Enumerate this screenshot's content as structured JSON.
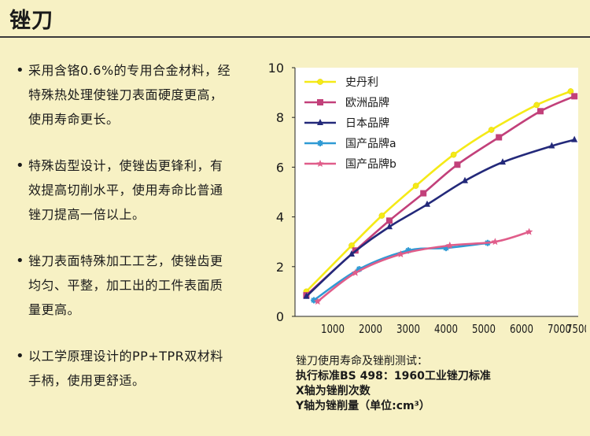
{
  "header": {
    "title": "锉刀"
  },
  "bullets": [
    "采用含铬0.6%的专用合金材料，经特殊热处理使锉刀表面硬度更高，使用寿命更长。",
    "特殊齿型设计，使锉齿更锋利，有效提高切削水平，使用寿命比普通锉刀提高一倍以上。",
    "锉刀表面特殊加工工艺，使锉齿更均匀、平整，加工出的工件表面质量更高。",
    "以工学原理设计的PP+TPR双材料手柄，使用更舒适。"
  ],
  "chart_data": {
    "type": "line",
    "title": "",
    "xlabel": "",
    "ylabel": "",
    "xlim": [
      0,
      7500
    ],
    "ylim": [
      0,
      10
    ],
    "x_ticks": [
      1000,
      2000,
      3000,
      4000,
      5000,
      6000,
      7000,
      7500
    ],
    "x_tick_labels": [
      "1000",
      "2000",
      "3000",
      "4000",
      "5000",
      "6000",
      "7000",
      "7500"
    ],
    "y_ticks": [
      0,
      2,
      4,
      6,
      8,
      10
    ],
    "grid": false,
    "legend_position": "top-left",
    "series": [
      {
        "name": "史丹利",
        "color": "#f5ea17",
        "marker": "circle",
        "x": [
          300,
          1500,
          2300,
          3200,
          4200,
          5200,
          6400,
          7300
        ],
        "y": [
          1.0,
          2.85,
          4.05,
          5.25,
          6.5,
          7.5,
          8.5,
          9.05
        ]
      },
      {
        "name": "欧洲品牌",
        "color": "#c2407a",
        "marker": "square",
        "x": [
          300,
          1600,
          2500,
          3400,
          4300,
          5400,
          6500,
          7400
        ],
        "y": [
          0.85,
          2.65,
          3.85,
          4.95,
          6.1,
          7.2,
          8.25,
          8.85
        ]
      },
      {
        "name": "日本品牌",
        "color": "#23297a",
        "marker": "triangle",
        "x": [
          300,
          1500,
          2500,
          3500,
          4500,
          5500,
          6800,
          7400
        ],
        "y": [
          0.8,
          2.5,
          3.6,
          4.5,
          5.45,
          6.2,
          6.85,
          7.1
        ]
      },
      {
        "name": "国产品牌a",
        "color": "#2f9ad4",
        "marker": "asterisk",
        "x": [
          500,
          1700,
          3000,
          4000,
          5100
        ],
        "y": [
          0.65,
          1.9,
          2.65,
          2.75,
          2.95
        ]
      },
      {
        "name": "国产品牌b",
        "color": "#e05d8a",
        "marker": "star",
        "x": [
          600,
          1600,
          2800,
          4100,
          5300,
          6200
        ],
        "y": [
          0.6,
          1.75,
          2.5,
          2.85,
          3.0,
          3.4
        ]
      }
    ]
  },
  "chart_note": {
    "line1": "锉刀使用寿命及锉削测试：",
    "line2": "执行标准BS 498：1960工业锉刀标准",
    "line3": "X轴为锉削次数",
    "line4": "Y轴为锉削量（单位:cm³）"
  }
}
